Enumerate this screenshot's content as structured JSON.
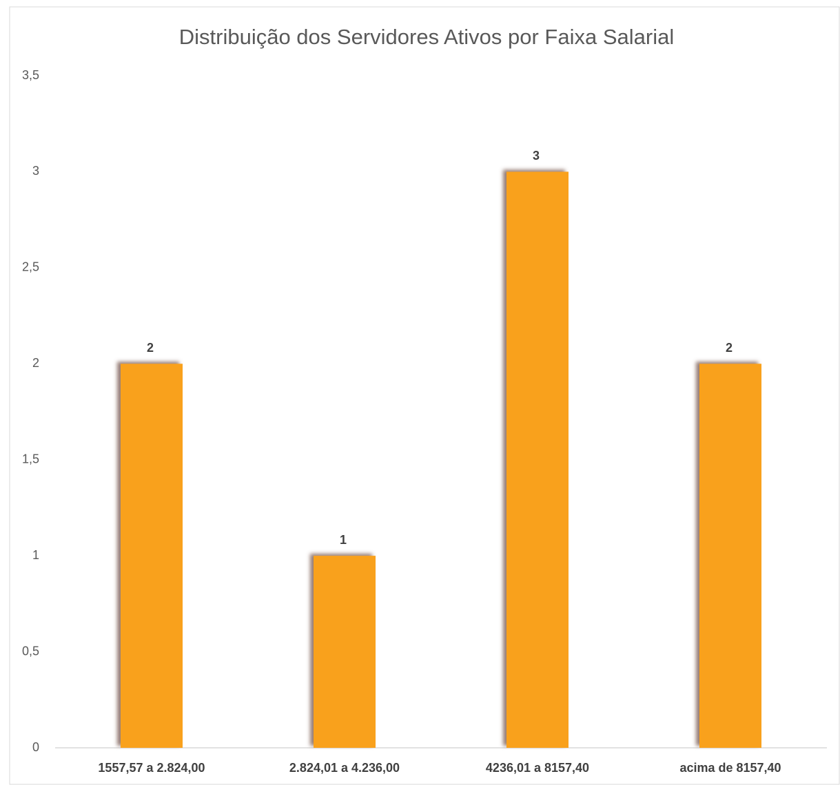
{
  "chart_data": {
    "type": "bar",
    "title": "Distribuição dos Servidores Ativos por Faixa Salarial",
    "categories": [
      "1557,57 a 2.824,00",
      "2.824,01 a 4.236,00",
      "4236,01 a 8157,40",
      "acima de 8157,40"
    ],
    "values": [
      2,
      1,
      3,
      2
    ],
    "color": "#f9a11b",
    "ylim": [
      0,
      3.5
    ],
    "yticks": [
      0,
      {
        "value": 0.5,
        "label": "0,5"
      },
      1,
      {
        "value": 1.5,
        "label": "1,5"
      },
      2,
      {
        "value": 2.5,
        "label": "2,5"
      },
      3,
      {
        "value": 3.5,
        "label": "3,5"
      }
    ],
    "grid": false
  }
}
